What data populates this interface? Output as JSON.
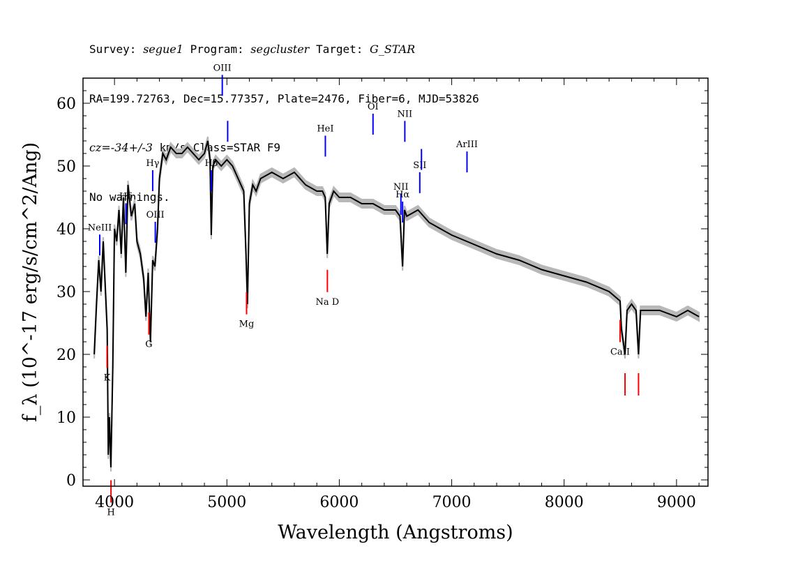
{
  "header": {
    "line1": {
      "survey_label": "Survey: ",
      "survey": "segue1",
      "program_label": " Program: ",
      "program": "segcluster",
      "target_label": " Target: ",
      "target": "G_STAR"
    },
    "line2": "RA=199.72763, Dec=15.77357, Plate=2476, Fiber=6, MJD=53826",
    "line3": {
      "cz_label": "cz=",
      "cz_value": "-34+/-3",
      "cz_rest": " km/s Class=STAR F9"
    },
    "line4": "No warnings."
  },
  "chart_data": {
    "type": "line",
    "xlabel": "Wavelength (Angstroms)",
    "ylabel": "f_λ (10^-17 erg/s/cm^2/Ang)",
    "xlim": [
      3720,
      9280
    ],
    "ylim": [
      -1,
      64
    ],
    "x_ticks": [
      4000,
      5000,
      6000,
      7000,
      8000,
      9000
    ],
    "y_ticks": [
      0,
      10,
      20,
      30,
      40,
      50,
      60
    ],
    "colors": {
      "flux": "#000000",
      "error_band": "#b8b8b8",
      "emission": "#0000ff",
      "absorption": "#ff0000"
    },
    "series": [
      {
        "x": [
          3820,
          3840,
          3860,
          3880,
          3900,
          3920,
          3935,
          3945,
          3955,
          3968,
          3985,
          4000,
          4020,
          4040,
          4060,
          4080,
          4101,
          4120,
          4150,
          4180,
          4200,
          4230,
          4260,
          4280,
          4300,
          4320,
          4340,
          4360,
          4383,
          4400,
          4430,
          4460,
          4500,
          4550,
          4600,
          4650,
          4700,
          4750,
          4800,
          4830,
          4850,
          4861,
          4875,
          4900,
          4950,
          5000,
          5050,
          5100,
          5150,
          5170,
          5183,
          5200,
          5230,
          5260,
          5300,
          5400,
          5500,
          5600,
          5700,
          5800,
          5850,
          5875,
          5893,
          5910,
          5950,
          6000,
          6100,
          6200,
          6300,
          6400,
          6500,
          6540,
          6563,
          6580,
          6600,
          6700,
          6800,
          6900,
          7000,
          7200,
          7400,
          7600,
          7800,
          8000,
          8200,
          8400,
          8498,
          8510,
          8542,
          8560,
          8600,
          8640,
          8662,
          8680,
          8750,
          8850,
          9000,
          9100,
          9200
        ],
        "y": [
          20,
          28,
          35,
          30,
          38,
          30,
          24,
          4,
          10,
          2,
          18,
          40,
          38,
          43,
          36,
          45,
          33,
          47,
          42,
          44,
          38,
          36,
          32,
          26,
          33,
          22,
          35,
          34,
          40,
          48,
          52,
          51,
          53,
          52,
          52,
          53,
          52,
          51,
          52,
          54,
          51,
          39,
          50,
          51,
          50,
          51,
          50,
          48,
          46,
          36,
          28,
          44,
          47,
          46,
          48,
          49,
          48,
          49,
          47,
          46,
          46,
          45,
          36,
          44,
          46,
          45,
          45,
          44,
          44,
          43,
          43,
          42,
          34,
          43,
          42,
          43,
          41,
          40,
          39,
          37.5,
          36,
          35,
          33.5,
          32.5,
          31.5,
          30,
          28.5,
          24,
          20,
          27,
          28,
          27,
          20,
          27,
          27,
          27,
          26,
          27,
          26
        ]
      }
    ],
    "emission_lines": [
      {
        "label": "NeIII",
        "wave": 3869
      },
      {
        "label": "Hδ",
        "wave": 4102
      },
      {
        "label": "Hγ",
        "wave": 4340
      },
      {
        "label": "OIII",
        "wave": 4363
      },
      {
        "label": "Hβ",
        "wave": 4861
      },
      {
        "label": "OIII",
        "wave": 4959
      },
      {
        "label": "",
        "wave": 5007
      },
      {
        "label": "HeI",
        "wave": 5876
      },
      {
        "label": "OI",
        "wave": 6300
      },
      {
        "label": "NII",
        "wave": 6548
      },
      {
        "label": "Hα",
        "wave": 6563
      },
      {
        "label": "NII",
        "wave": 6583
      },
      {
        "label": "SII",
        "wave": 6716
      },
      {
        "label": "",
        "wave": 6731
      },
      {
        "label": "ArIII",
        "wave": 7136
      }
    ],
    "absorption_lines": [
      {
        "label": "K",
        "wave": 3934
      },
      {
        "label": "H",
        "wave": 3969
      },
      {
        "label": "G",
        "wave": 4306
      },
      {
        "label": "Mg",
        "wave": 5175
      },
      {
        "label": "Na D",
        "wave": 5894
      },
      {
        "label": "CaII",
        "wave": 8498
      },
      {
        "label": "",
        "wave": 8542
      },
      {
        "label": "",
        "wave": 8662
      }
    ]
  }
}
